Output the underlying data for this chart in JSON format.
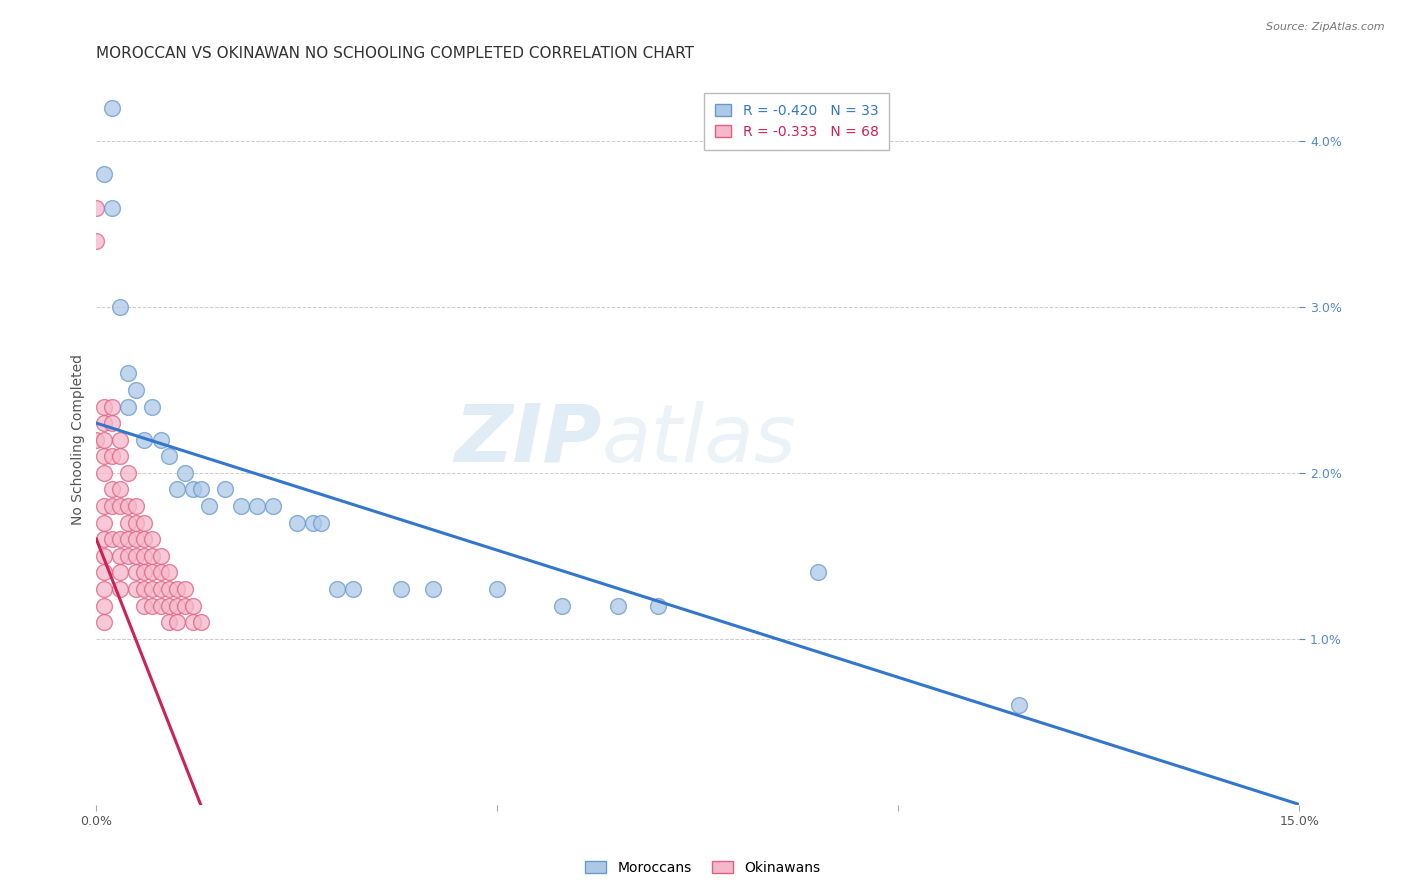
{
  "title": "MOROCCAN VS OKINAWAN NO SCHOOLING COMPLETED CORRELATION CHART",
  "source": "Source: ZipAtlas.com",
  "ylabel": "No Schooling Completed",
  "watermark_zip": "ZIP",
  "watermark_atlas": "atlas",
  "xlim": [
    0.0,
    0.15
  ],
  "ylim": [
    0.0,
    0.044
  ],
  "moroccan_color": "#adc8e6",
  "moroccan_edge": "#6699cc",
  "okinawan_color": "#f5b8cb",
  "okinawan_edge": "#e06080",
  "moroccan_line_color": "#3377cc",
  "okinawan_line_color": "#cc2255",
  "moroccan_R": "-0.420",
  "moroccan_N": "33",
  "okinawan_R": "-0.333",
  "okinawan_N": "68",
  "moroccan_x": [
    0.001,
    0.002,
    0.002,
    0.003,
    0.004,
    0.004,
    0.005,
    0.006,
    0.007,
    0.008,
    0.009,
    0.01,
    0.011,
    0.012,
    0.013,
    0.014,
    0.016,
    0.018,
    0.02,
    0.022,
    0.025,
    0.027,
    0.028,
    0.03,
    0.032,
    0.038,
    0.042,
    0.05,
    0.058,
    0.065,
    0.07,
    0.09,
    0.115
  ],
  "moroccan_y": [
    0.038,
    0.042,
    0.036,
    0.03,
    0.026,
    0.024,
    0.025,
    0.022,
    0.024,
    0.022,
    0.021,
    0.019,
    0.02,
    0.019,
    0.019,
    0.018,
    0.019,
    0.018,
    0.018,
    0.018,
    0.017,
    0.017,
    0.017,
    0.013,
    0.013,
    0.013,
    0.013,
    0.013,
    0.012,
    0.012,
    0.012,
    0.014,
    0.006
  ],
  "okinawan_x": [
    0.0,
    0.0,
    0.0,
    0.001,
    0.001,
    0.001,
    0.001,
    0.001,
    0.001,
    0.001,
    0.001,
    0.001,
    0.001,
    0.001,
    0.001,
    0.001,
    0.002,
    0.002,
    0.002,
    0.002,
    0.002,
    0.002,
    0.003,
    0.003,
    0.003,
    0.003,
    0.003,
    0.003,
    0.003,
    0.003,
    0.004,
    0.004,
    0.004,
    0.004,
    0.004,
    0.005,
    0.005,
    0.005,
    0.005,
    0.005,
    0.005,
    0.006,
    0.006,
    0.006,
    0.006,
    0.006,
    0.006,
    0.007,
    0.007,
    0.007,
    0.007,
    0.007,
    0.008,
    0.008,
    0.008,
    0.008,
    0.009,
    0.009,
    0.009,
    0.009,
    0.01,
    0.01,
    0.01,
    0.011,
    0.011,
    0.012,
    0.012,
    0.013
  ],
  "okinawan_y": [
    0.022,
    0.034,
    0.036,
    0.024,
    0.023,
    0.022,
    0.021,
    0.02,
    0.018,
    0.017,
    0.016,
    0.015,
    0.014,
    0.013,
    0.012,
    0.011,
    0.024,
    0.023,
    0.021,
    0.019,
    0.018,
    0.016,
    0.022,
    0.021,
    0.019,
    0.018,
    0.016,
    0.015,
    0.014,
    0.013,
    0.02,
    0.018,
    0.017,
    0.016,
    0.015,
    0.018,
    0.017,
    0.016,
    0.015,
    0.014,
    0.013,
    0.017,
    0.016,
    0.015,
    0.014,
    0.013,
    0.012,
    0.016,
    0.015,
    0.014,
    0.013,
    0.012,
    0.015,
    0.014,
    0.013,
    0.012,
    0.014,
    0.013,
    0.012,
    0.011,
    0.013,
    0.012,
    0.011,
    0.013,
    0.012,
    0.012,
    0.011,
    0.011
  ],
  "background_color": "#ffffff",
  "grid_color": "#cccccc",
  "title_fontsize": 11,
  "axis_fontsize": 9,
  "legend_fontsize": 10,
  "moroccan_line_x0": 0.0,
  "moroccan_line_y0": 0.023,
  "moroccan_line_x1": 0.15,
  "moroccan_line_y1": 0.0,
  "okinawan_line_x0": 0.0,
  "okinawan_line_y0": 0.016,
  "okinawan_line_x1": 0.013,
  "okinawan_line_y1": 0.0
}
